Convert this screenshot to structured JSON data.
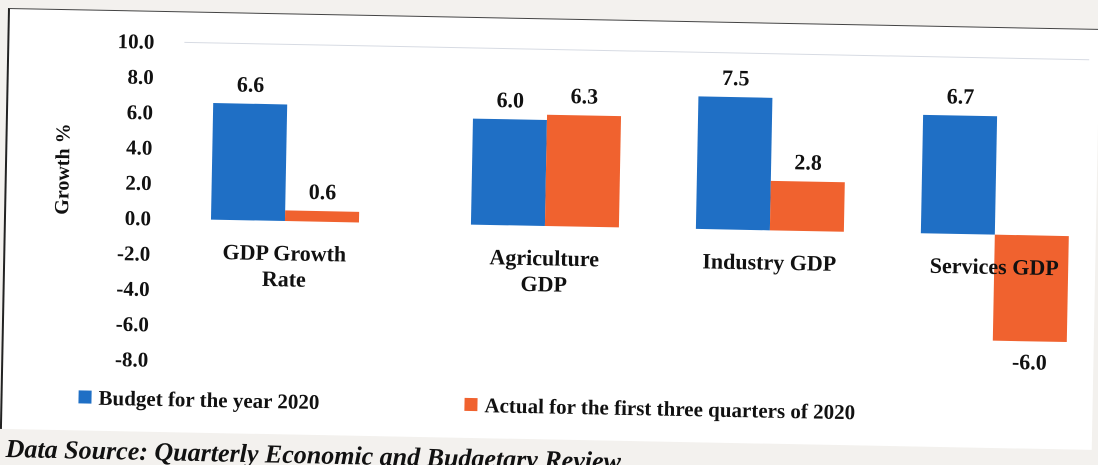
{
  "chart_data": {
    "type": "bar",
    "categories": [
      [
        "GDP Growth",
        "Rate"
      ],
      [
        "Agriculture",
        "GDP"
      ],
      [
        "Industry GDP"
      ],
      [
        "Services GDP"
      ]
    ],
    "series": [
      {
        "name": "Budget for the year 2020",
        "color": "#1f6fc5",
        "values": [
          6.6,
          6.0,
          7.5,
          6.7
        ],
        "labels": [
          "6.6",
          "6.0",
          "7.5",
          "6.7"
        ]
      },
      {
        "name": "Actual for the first three quarters of 2020",
        "color": "#f0622f",
        "values": [
          0.6,
          6.3,
          2.8,
          -6.0
        ],
        "labels": [
          "0.6",
          "6.3",
          "2.8",
          "-6.0"
        ]
      }
    ],
    "ylabel": "Growth %",
    "ylim": [
      -8.0,
      10.0
    ],
    "yticks": [
      "10.0",
      "8.0",
      "6.0",
      "4.0",
      "2.0",
      "0.0",
      "-2.0",
      "-4.0",
      "-6.0",
      "-8.0"
    ],
    "grid": false,
    "legend_position": "bottom"
  },
  "source_note": "Data Source: Quarterly Economic and Budgetary Review"
}
